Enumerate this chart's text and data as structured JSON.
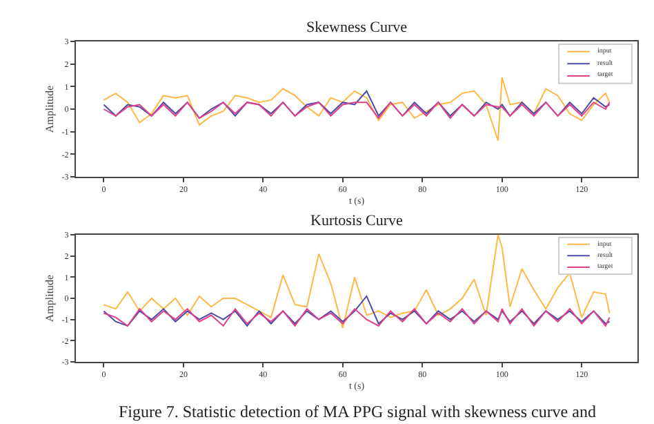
{
  "chart_data": [
    {
      "type": "line",
      "title": "Skewness Curve",
      "xlabel": "t (s)",
      "ylabel": "Amplitude",
      "x": [
        0,
        3,
        6,
        9,
        12,
        15,
        18,
        21,
        24,
        27,
        30,
        33,
        36,
        39,
        42,
        45,
        48,
        51,
        54,
        57,
        60,
        63,
        66,
        69,
        72,
        75,
        78,
        81,
        84,
        87,
        90,
        93,
        96,
        99,
        100,
        102,
        105,
        108,
        111,
        114,
        117,
        120,
        123,
        126,
        127
      ],
      "xlim": [
        -7,
        134
      ],
      "xticks": [
        0,
        20,
        40,
        60,
        80,
        100,
        120
      ],
      "ylim": [
        -3,
        3
      ],
      "yticks": [
        -3,
        -2,
        -1,
        0,
        1,
        2,
        3
      ],
      "grid": false,
      "legend": "top right",
      "series": [
        {
          "name": "input",
          "color": "#ffb845",
          "values": [
            0.4,
            0.7,
            0.3,
            -0.6,
            -0.2,
            0.6,
            0.5,
            0.6,
            -0.7,
            -0.3,
            -0.1,
            0.6,
            0.5,
            0.3,
            0.4,
            0.9,
            0.6,
            0.1,
            -0.3,
            0.5,
            0.3,
            0.8,
            0.5,
            -0.5,
            0.2,
            0.3,
            -0.4,
            -0.1,
            0.2,
            0.3,
            0.7,
            0.8,
            0.2,
            -1.4,
            1.4,
            0.2,
            0.3,
            -0.2,
            0.9,
            0.6,
            -0.2,
            -0.5,
            0.2,
            0.7,
            0.3
          ]
        },
        {
          "name": "result",
          "color": "#4a4aa8",
          "values": [
            0.2,
            -0.3,
            0.2,
            0.1,
            -0.3,
            0.3,
            -0.2,
            0.3,
            -0.4,
            0.0,
            0.3,
            -0.3,
            0.3,
            0.2,
            -0.2,
            0.3,
            -0.3,
            0.2,
            0.3,
            -0.2,
            0.3,
            0.2,
            0.8,
            -0.3,
            0.3,
            -0.3,
            0.3,
            -0.2,
            0.3,
            -0.3,
            0.2,
            -0.3,
            0.3,
            0.0,
            0.2,
            -0.3,
            0.3,
            -0.2,
            0.3,
            -0.3,
            0.3,
            -0.2,
            0.5,
            0.1,
            0.2
          ]
        },
        {
          "name": "target",
          "color": "#e0408a",
          "values": [
            0.0,
            -0.3,
            0.1,
            0.2,
            -0.3,
            0.2,
            -0.3,
            0.3,
            -0.4,
            -0.1,
            0.3,
            -0.2,
            0.3,
            0.2,
            -0.3,
            0.3,
            -0.3,
            0.1,
            0.3,
            -0.3,
            0.2,
            0.3,
            0.3,
            -0.4,
            0.3,
            -0.3,
            0.2,
            -0.3,
            0.3,
            -0.4,
            0.2,
            -0.3,
            0.2,
            0.1,
            0.1,
            -0.3,
            0.2,
            -0.3,
            0.3,
            -0.3,
            0.2,
            -0.3,
            0.3,
            0.0,
            0.3
          ]
        }
      ]
    },
    {
      "type": "line",
      "title": "Kurtosis Curve",
      "xlabel": "t (s)",
      "ylabel": "Amplitude",
      "x": [
        0,
        3,
        6,
        9,
        12,
        15,
        18,
        21,
        24,
        27,
        30,
        33,
        36,
        39,
        42,
        45,
        48,
        51,
        54,
        57,
        60,
        63,
        66,
        69,
        72,
        75,
        78,
        81,
        84,
        87,
        90,
        93,
        96,
        99,
        100,
        102,
        105,
        108,
        111,
        114,
        117,
        120,
        123,
        126,
        127
      ],
      "xlim": [
        -7,
        134
      ],
      "xticks": [
        0,
        20,
        40,
        60,
        80,
        100,
        120
      ],
      "ylim": [
        -3,
        3
      ],
      "yticks": [
        -3,
        -2,
        -1,
        0,
        1,
        2,
        3
      ],
      "grid": false,
      "legend": "top right",
      "annotations": [
        "Figure 7. Statistic detection of MA PPG signal with skewness curve and"
      ],
      "series": [
        {
          "name": "input",
          "color": "#ffb845",
          "values": [
            -0.3,
            -0.5,
            0.3,
            -0.6,
            0.0,
            -0.5,
            0.0,
            -0.8,
            0.1,
            -0.4,
            0.0,
            0.0,
            -0.3,
            -0.6,
            -0.9,
            1.1,
            -0.3,
            -0.4,
            2.1,
            0.7,
            -1.4,
            1.0,
            -0.8,
            -0.6,
            -0.9,
            -0.7,
            -0.6,
            0.4,
            -0.8,
            -0.5,
            0.0,
            0.9,
            -0.8,
            3.0,
            2.4,
            -0.4,
            1.4,
            0.4,
            -0.5,
            0.5,
            1.2,
            -0.9,
            0.3,
            0.2,
            -0.7
          ]
        },
        {
          "name": "result",
          "color": "#4a4aa8",
          "values": [
            -0.6,
            -1.1,
            -1.3,
            -0.6,
            -1.0,
            -0.5,
            -1.1,
            -0.6,
            -1.0,
            -0.7,
            -1.0,
            -0.6,
            -1.3,
            -0.6,
            -1.2,
            -0.6,
            -1.2,
            -0.6,
            -1.0,
            -0.6,
            -1.1,
            -0.6,
            0.1,
            -1.2,
            -0.7,
            -1.0,
            -0.6,
            -1.2,
            -0.6,
            -1.0,
            -0.6,
            -1.1,
            -0.6,
            -1.0,
            -0.6,
            -1.1,
            -0.6,
            -1.2,
            -0.6,
            -1.0,
            -0.6,
            -1.1,
            -0.6,
            -1.2,
            -1.1
          ]
        },
        {
          "name": "target",
          "color": "#e0408a",
          "values": [
            -0.7,
            -0.9,
            -1.3,
            -0.5,
            -1.1,
            -0.6,
            -1.0,
            -0.5,
            -1.1,
            -0.8,
            -1.3,
            -0.5,
            -1.2,
            -0.7,
            -1.1,
            -0.6,
            -1.3,
            -0.5,
            -1.0,
            -0.7,
            -1.2,
            -0.5,
            -1.0,
            -1.3,
            -0.6,
            -1.1,
            -0.5,
            -1.2,
            -0.7,
            -1.1,
            -0.5,
            -1.2,
            -0.6,
            -1.1,
            -0.5,
            -1.2,
            -0.5,
            -1.3,
            -0.6,
            -1.1,
            -0.5,
            -1.2,
            -0.6,
            -1.3,
            -0.9
          ]
        }
      ]
    }
  ]
}
